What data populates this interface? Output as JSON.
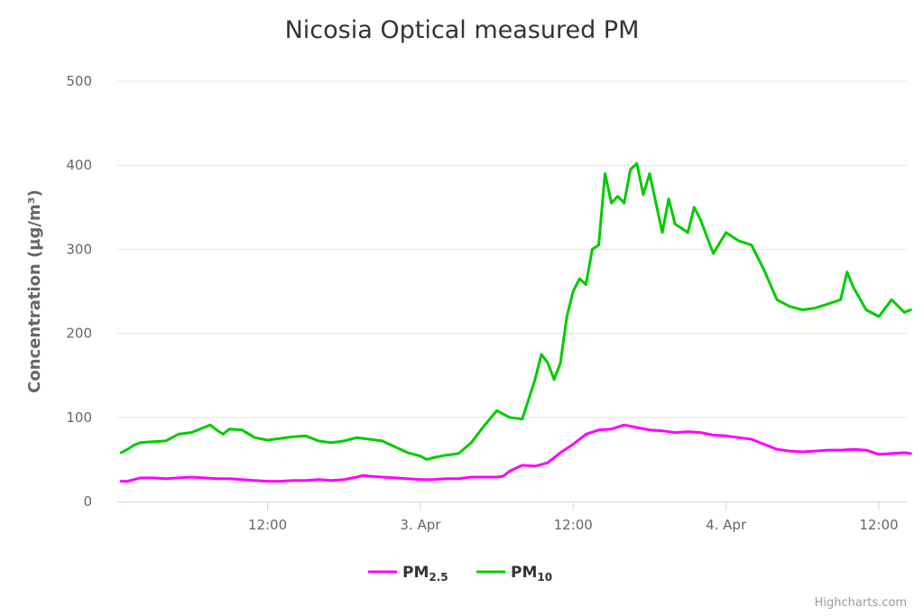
{
  "chart_data": {
    "type": "line",
    "title": "Nicosia Optical measured PM",
    "ylabel": "Concentration (µg/m³)",
    "xlabel": "",
    "ylim": [
      0,
      500
    ],
    "y_ticks": [
      0,
      100,
      200,
      300,
      400,
      500
    ],
    "x_ticks": [
      "12:00",
      "3. Apr",
      "12:00",
      "4. Apr",
      "12:00"
    ],
    "x_tick_hours": [
      12,
      24,
      36,
      48,
      60
    ],
    "xlim_hours": [
      0.2,
      62.2
    ],
    "x_unit": "hours from 2 Apr 00:00",
    "grid": true,
    "legend_position": "bottom-center",
    "credits": "Highcharts.com",
    "series": [
      {
        "name": "PM",
        "name_sub": "2.5",
        "color": "#ff00ff",
        "points": [
          [
            0.5,
            24
          ],
          [
            1,
            24
          ],
          [
            1.5,
            26
          ],
          [
            2,
            28
          ],
          [
            3,
            28
          ],
          [
            4,
            27
          ],
          [
            5,
            28
          ],
          [
            6,
            29
          ],
          [
            7,
            28
          ],
          [
            8,
            27
          ],
          [
            9,
            27
          ],
          [
            10,
            26
          ],
          [
            11,
            25
          ],
          [
            12,
            24
          ],
          [
            13,
            24
          ],
          [
            14,
            25
          ],
          [
            15,
            25
          ],
          [
            16,
            26
          ],
          [
            17,
            25
          ],
          [
            18,
            26
          ],
          [
            19,
            29
          ],
          [
            19.5,
            31
          ],
          [
            20,
            30
          ],
          [
            21,
            29
          ],
          [
            22,
            28
          ],
          [
            23,
            27
          ],
          [
            24,
            26
          ],
          [
            25,
            26
          ],
          [
            26,
            27
          ],
          [
            27,
            27
          ],
          [
            28,
            29
          ],
          [
            29,
            29
          ],
          [
            30,
            29
          ],
          [
            30.5,
            30
          ],
          [
            31,
            36
          ],
          [
            32,
            43
          ],
          [
            33,
            42
          ],
          [
            34,
            46
          ],
          [
            35,
            58
          ],
          [
            36,
            68
          ],
          [
            37,
            80
          ],
          [
            38,
            85
          ],
          [
            39,
            86
          ],
          [
            40,
            91
          ],
          [
            41,
            88
          ],
          [
            42,
            85
          ],
          [
            43,
            84
          ],
          [
            44,
            82
          ],
          [
            45,
            83
          ],
          [
            46,
            82
          ],
          [
            47,
            79
          ],
          [
            48,
            78
          ],
          [
            49,
            76
          ],
          [
            50,
            74
          ],
          [
            51,
            68
          ],
          [
            52,
            62
          ],
          [
            53,
            60
          ],
          [
            54,
            59
          ],
          [
            55,
            60
          ],
          [
            56,
            61
          ],
          [
            57,
            61
          ],
          [
            58,
            62
          ],
          [
            59,
            61
          ],
          [
            60,
            56
          ],
          [
            61,
            57
          ],
          [
            62,
            58
          ],
          [
            62.5,
            57
          ]
        ]
      },
      {
        "name": "PM",
        "name_sub": "10",
        "color": "#00cc00",
        "points": [
          [
            0.5,
            58
          ],
          [
            1,
            62
          ],
          [
            1.5,
            67
          ],
          [
            2,
            70
          ],
          [
            3,
            71
          ],
          [
            4,
            72
          ],
          [
            5,
            80
          ],
          [
            6,
            82
          ],
          [
            7,
            88
          ],
          [
            7.5,
            91
          ],
          [
            8,
            85
          ],
          [
            8.5,
            80
          ],
          [
            9,
            86
          ],
          [
            10,
            85
          ],
          [
            11,
            76
          ],
          [
            12,
            73
          ],
          [
            13,
            75
          ],
          [
            14,
            77
          ],
          [
            15,
            78
          ],
          [
            16,
            72
          ],
          [
            17,
            70
          ],
          [
            18,
            72
          ],
          [
            19,
            76
          ],
          [
            20,
            74
          ],
          [
            21,
            72
          ],
          [
            22,
            65
          ],
          [
            23,
            58
          ],
          [
            24,
            54
          ],
          [
            24.5,
            50
          ],
          [
            25,
            52
          ],
          [
            26,
            55
          ],
          [
            27,
            57
          ],
          [
            28,
            70
          ],
          [
            29,
            90
          ],
          [
            30,
            108
          ],
          [
            31,
            100
          ],
          [
            32,
            98
          ],
          [
            33,
            145
          ],
          [
            33.5,
            175
          ],
          [
            34,
            165
          ],
          [
            34.5,
            145
          ],
          [
            35,
            165
          ],
          [
            35.5,
            220
          ],
          [
            36,
            250
          ],
          [
            36.5,
            265
          ],
          [
            37,
            258
          ],
          [
            37.5,
            300
          ],
          [
            38,
            305
          ],
          [
            38.5,
            390
          ],
          [
            39,
            355
          ],
          [
            39.5,
            363
          ],
          [
            40,
            355
          ],
          [
            40.5,
            395
          ],
          [
            41,
            402
          ],
          [
            41.5,
            365
          ],
          [
            42,
            390
          ],
          [
            43,
            320
          ],
          [
            43.5,
            360
          ],
          [
            44,
            330
          ],
          [
            45,
            320
          ],
          [
            45.5,
            350
          ],
          [
            46,
            335
          ],
          [
            47,
            295
          ],
          [
            48,
            320
          ],
          [
            49,
            310
          ],
          [
            50,
            305
          ],
          [
            51,
            275
          ],
          [
            52,
            240
          ],
          [
            53,
            232
          ],
          [
            54,
            228
          ],
          [
            55,
            230
          ],
          [
            56,
            235
          ],
          [
            57,
            240
          ],
          [
            57.5,
            273
          ],
          [
            58,
            255
          ],
          [
            59,
            228
          ],
          [
            60,
            220
          ],
          [
            61,
            240
          ],
          [
            62,
            225
          ],
          [
            62.5,
            228
          ]
        ]
      }
    ]
  }
}
